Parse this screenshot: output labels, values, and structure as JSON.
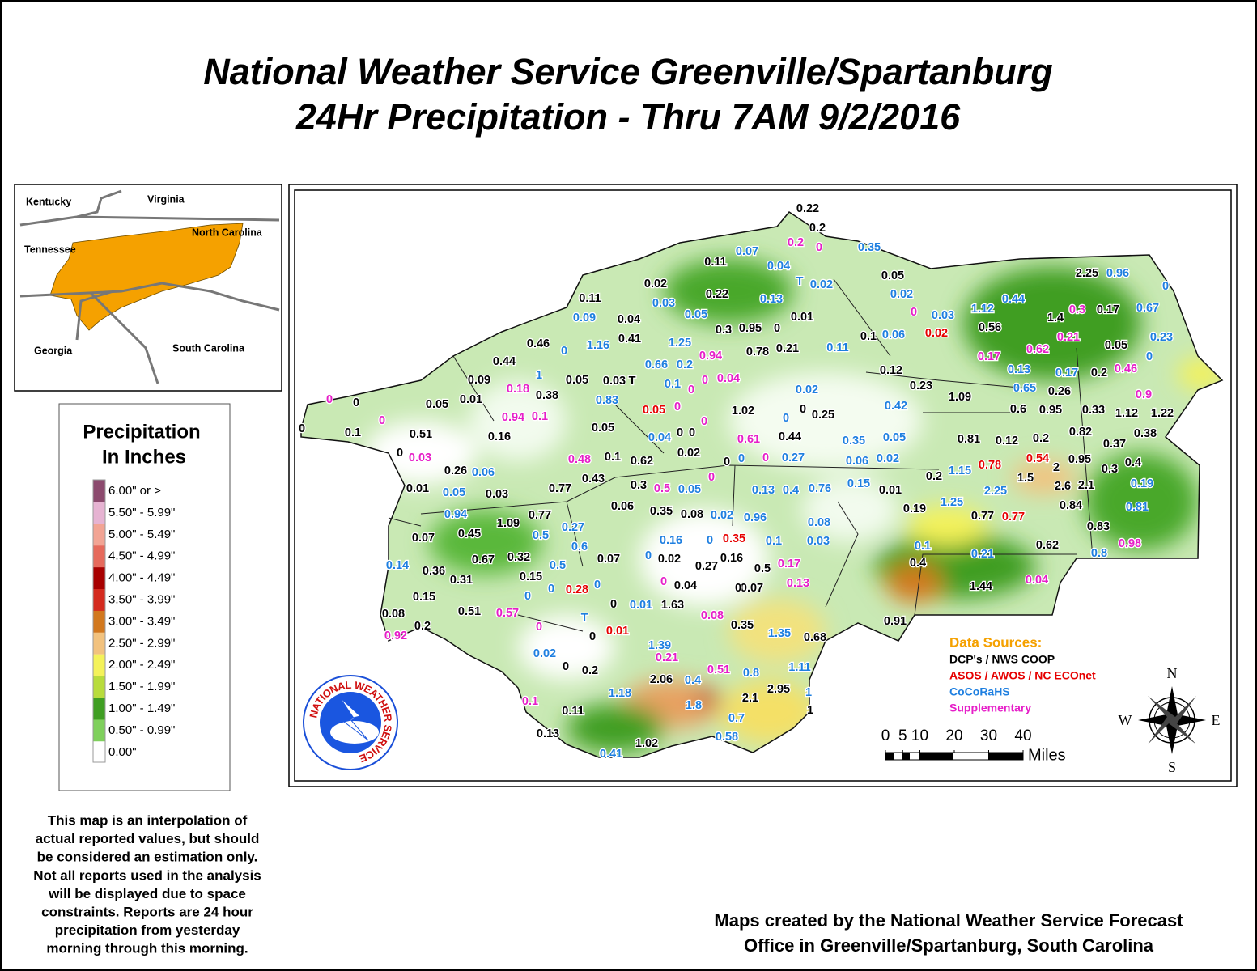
{
  "title": [
    "National Weather Service Greenville/Spartanburg",
    "24Hr Precipitation - Thru 7AM 9/2/2016"
  ],
  "inset": {
    "labels": [
      "Kentucky",
      "Virginia",
      "Tennessee",
      "North Carolina",
      "Georgia",
      "South Carolina"
    ]
  },
  "legend": {
    "title": [
      "Precipitation",
      "In Inches"
    ],
    "items": [
      {
        "label": "6.00\" or >",
        "color": "#8c4a6e"
      },
      {
        "label": "5.50\" - 5.99\"",
        "color": "#e6b3d2"
      },
      {
        "label": "5.00\" - 5.49\"",
        "color": "#f2a494"
      },
      {
        "label": "4.50\" - 4.99\"",
        "color": "#e66a5c"
      },
      {
        "label": "4.00\" - 4.49\"",
        "color": "#a80000"
      },
      {
        "label": "3.50\" - 3.99\"",
        "color": "#d42a1e"
      },
      {
        "label": "3.00\" - 3.49\"",
        "color": "#d2781e"
      },
      {
        "label": "2.50\" - 2.99\"",
        "color": "#f2c27e"
      },
      {
        "label": "2.00\" - 2.49\"",
        "color": "#f4f25a"
      },
      {
        "label": "1.50\" - 1.99\"",
        "color": "#b8dc3c"
      },
      {
        "label": "1.00\" - 1.49\"",
        "color": "#3f9e22"
      },
      {
        "label": "0.50\" - 0.99\"",
        "color": "#7fd05c"
      },
      {
        "label": "0.00\"",
        "color": "#ffffff"
      }
    ]
  },
  "data_sources": {
    "title": "Data Sources:",
    "sources": [
      {
        "name": "DCP's / NWS COOP",
        "color": "#000000",
        "reports": [
          0.22,
          0.2,
          0.11,
          0.05,
          2.25,
          0.02,
          0.11,
          0.22,
          0.04,
          0.01,
          1.4,
          0.17,
          0.3,
          0.95,
          0,
          0.41,
          0.1,
          0.56,
          0.46,
          0.78,
          0.21,
          0.05,
          0.44,
          0.12,
          0.2,
          0.09,
          0.05,
          0.03,
          "T",
          0.23,
          0.26,
          0.38,
          1.09,
          0.05,
          0.01,
          0,
          0.6,
          0.95,
          0.33,
          1.12,
          1.22,
          1.02,
          0,
          0.25,
          0.1,
          0,
          0.51,
          0.16,
          0.05,
          0,
          0,
          0.44,
          0.81,
          0.12,
          0.2,
          0.82,
          0.38,
          0.37,
          0,
          0.1,
          0.62,
          0.02,
          0,
          2,
          0.95,
          0.4,
          0.3,
          0.26,
          0.2,
          1.5,
          0.43,
          0.77,
          0.3,
          0.01,
          0.03,
          2.6,
          2.1,
          0.01,
          0.06,
          0.35,
          0.08,
          0.19,
          0.84,
          0.77,
          1.09,
          0.77,
          0.07,
          0.45,
          0.83,
          0.62,
          0.67,
          0.32,
          0.07,
          0.02,
          0.27,
          0.16,
          0.5,
          0.4,
          0.36,
          0.15,
          0.31,
          0.04,
          0.07,
          0,
          1.44,
          0.15,
          0,
          1.63,
          0.08,
          0.51,
          0.2,
          0.35,
          0.91,
          0,
          0.68,
          0,
          0.2,
          2.06,
          2.1,
          2.95,
          1,
          0.11,
          0.13,
          1.02
        ]
      },
      {
        "name": "ASOS / AWOS / NC ECOnet",
        "color": "#e60000",
        "reports": [
          0.02,
          0.05,
          0.78,
          0.54,
          0.35,
          0.77,
          0.28,
          0.01
        ]
      },
      {
        "name": "CoCoRaHS",
        "color": "#1e7fe0",
        "reports": [
          0.07,
          0.35,
          0.04,
          0.96,
          "T",
          0.02,
          0,
          0.03,
          0.02,
          0.13,
          0.05,
          0.03,
          1.12,
          0.44,
          0.67,
          0.09,
          1.25,
          1.16,
          0,
          0.06,
          0.23,
          0.11,
          0.66,
          0.2,
          1,
          0,
          0.13,
          0.17,
          0.1,
          0.02,
          0.83,
          0.65,
          0.42,
          0,
          0.04,
          0.35,
          0.05,
          0.06,
          0.06,
          0.02,
          0.27,
          0,
          1.15,
          0.05,
          0.13,
          0.4,
          0.76,
          0.15,
          0.19,
          0.05,
          2.25,
          1.25,
          0.94,
          0.02,
          0.96,
          0.08,
          0.81,
          0.27,
          0.5,
          0.16,
          0,
          0.1,
          0.03,
          0.6,
          0.1,
          0.21,
          0,
          0.14,
          0.5,
          0.8,
          0,
          0,
          0,
          0.01,
          "T",
          1.35,
          1.39,
          0.02,
          0.8,
          1.11,
          0.4,
          1.18,
          1,
          1.8,
          0.7,
          0.58,
          0.41
        ]
      },
      {
        "name": "Supplementary",
        "color": "#e61ec8",
        "reports": [
          0.2,
          0,
          0,
          0.3,
          0.94,
          0.21,
          0.62,
          0.17,
          0.46,
          0,
          0.04,
          0.18,
          0.9,
          0,
          0,
          0,
          0.94,
          0.1,
          0,
          0,
          0.61,
          0,
          0.03,
          0.48,
          0,
          0.5,
          0.17,
          0.13,
          0.04,
          0,
          0.57,
          0,
          0.08,
          0.92,
          0.21,
          0.51,
          0.1,
          0.98
        ]
      }
    ]
  },
  "scale": {
    "ticks": [
      0,
      5,
      10,
      20,
      30,
      40
    ],
    "unit": "Miles"
  },
  "compass": [
    "N",
    "E",
    "S",
    "W"
  ],
  "logo": "NATIONAL WEATHER SERVICE",
  "disclaimer": [
    "This map is an interpolation of",
    "actual reported values, but should",
    "be considered an estimation only.",
    "Not all reports used in the analysis",
    "will be displayed due to space",
    "constraints. Reports are 24 hour",
    "precipitation from yesterday",
    "morning through this morning."
  ],
  "credit": [
    "Maps created by the National Weather Service Forecast",
    "Office in Greenville/Spartanburg, South Carolina"
  ]
}
